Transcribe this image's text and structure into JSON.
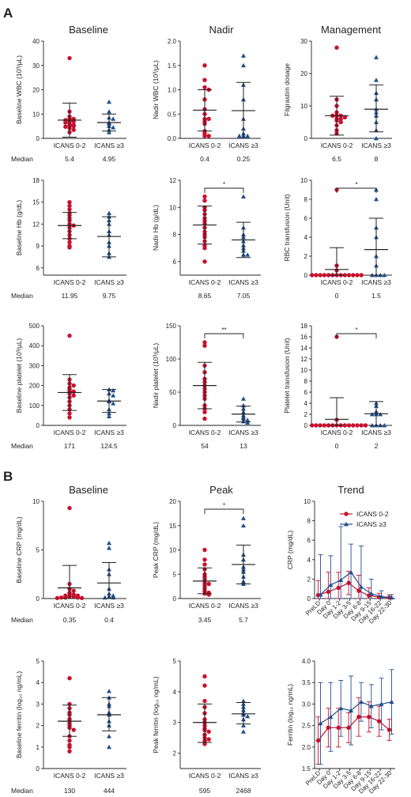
{
  "section_a": {
    "letter": "A",
    "column_titles": [
      "Baseline",
      "Nadir",
      "Management"
    ],
    "median_label": "Median"
  },
  "section_b": {
    "letter": "B",
    "column_titles": [
      "Baseline",
      "Peak",
      "Trend"
    ]
  },
  "colors": {
    "icans_low": "#c8102e",
    "icans_high": "#1f4e8c"
  },
  "chart_data": [
    {
      "id": "a-baseline-wbc",
      "type": "scatter",
      "ylabel": "Baseline WBC (10³/µL)",
      "ylim": [
        0,
        40
      ],
      "yticks": [
        0,
        10,
        20,
        30,
        40
      ],
      "ytick_labels": [
        "0",
        "10",
        "20",
        "30",
        "40"
      ],
      "categories": [
        "ICANS 0-2",
        "ICANS ≥3"
      ],
      "series": [
        {
          "values": [
            33,
            11,
            9,
            8,
            8,
            7.5,
            7,
            7,
            6.5,
            6,
            5.5,
            5.2,
            5,
            4.8,
            4.2,
            3.5,
            2.5
          ],
          "mean": 7.5,
          "sd_low": 0.5,
          "sd_high": 14.5
        },
        {
          "values": [
            15,
            11,
            8.5,
            8,
            6.5,
            6,
            5,
            4.5,
            3.5,
            2.5
          ],
          "mean": 6.5,
          "sd_low": 3,
          "sd_high": 10
        },
        {
          "values": []
        }
      ],
      "medians": [
        "5.4",
        "4.95"
      ]
    },
    {
      "id": "a-nadir-wbc",
      "type": "scatter",
      "ylabel": "Nadir WBC (10³/µL)",
      "ylim": [
        0,
        2
      ],
      "yticks": [
        0,
        0.5,
        1,
        1.5,
        2
      ],
      "ytick_labels": [
        "0.0",
        "0.5",
        "1.0",
        "1.5",
        "2.0"
      ],
      "categories": [
        "ICANS 0-2",
        "ICANS ≥3"
      ],
      "series": [
        {
          "values": [
            1.5,
            1.2,
            1.05,
            1.0,
            0.8,
            0.6,
            0.5,
            0.4,
            0.4,
            0.35,
            0.3,
            0.15,
            0.1,
            0.05,
            0.05
          ],
          "mean": 0.58,
          "sd_low": 0.15,
          "sd_high": 1.0
        },
        {
          "values": [
            1.7,
            1.5,
            1.1,
            0.8,
            0.4,
            0.2,
            0.1,
            0.05,
            0.05,
            0.05
          ],
          "mean": 0.57,
          "sd_low": 0.0,
          "sd_high": 1.15
        },
        {
          "values": []
        }
      ],
      "medians": [
        "0.4",
        "0.25"
      ]
    },
    {
      "id": "a-filgrastim",
      "type": "scatter",
      "ylabel": "Filgrastim dosage",
      "ylim": [
        0,
        30
      ],
      "yticks": [
        0,
        10,
        20,
        30
      ],
      "ytick_labels": [
        "0",
        "10",
        "20",
        "30"
      ],
      "categories": [
        "ICANS 0-2",
        "ICANS ≥3"
      ],
      "series": [
        {
          "values": [
            28,
            12,
            10,
            8,
            7,
            7,
            7,
            6.5,
            6,
            6,
            5.5,
            5,
            4,
            2.5,
            1.5
          ],
          "mean": 7,
          "sd_low": 1,
          "sd_high": 13
        },
        {
          "values": [
            25,
            18,
            14,
            12,
            9,
            8,
            7,
            5,
            2.5,
            0
          ],
          "mean": 9,
          "sd_low": 2,
          "sd_high": 16.5
        },
        {
          "values": []
        }
      ],
      "medians": [
        "6.5",
        "8"
      ]
    },
    {
      "id": "a-baseline-hb",
      "type": "scatter",
      "ylabel": "Baseline Hb (g/dL)",
      "ylim": [
        5,
        18
      ],
      "yticks": [
        6,
        9,
        12,
        15,
        18
      ],
      "ytick_labels": [
        "6",
        "9",
        "12",
        "15",
        "18"
      ],
      "categories": [
        "ICANS 0-2",
        "ICANS ≥3"
      ],
      "series": [
        {
          "values": [
            15.0,
            14.5,
            14.0,
            13.5,
            13.2,
            12.8,
            12.5,
            12.0,
            11.8,
            11.5,
            11.0,
            10.5,
            10.0,
            9.5,
            9.0,
            8.8
          ],
          "mean": 11.8,
          "sd_low": 10.0,
          "sd_high": 13.6
        },
        {
          "values": [
            13.5,
            13.0,
            12.5,
            12.0,
            11.0,
            10.5,
            9.5,
            9.0,
            8.0,
            7.5
          ],
          "mean": 10.3,
          "sd_low": 7.5,
          "sd_high": 13.0
        },
        {
          "values": []
        }
      ],
      "medians": [
        "11.95",
        "9.75"
      ]
    },
    {
      "id": "a-nadir-hb",
      "type": "scatter",
      "ylabel": "Nadir Hb (g/dL)",
      "ylim": [
        5,
        12
      ],
      "yticks": [
        6,
        8,
        10,
        12
      ],
      "ytick_labels": [
        "6",
        "8",
        "10",
        "12"
      ],
      "categories": [
        "ICANS 0-2",
        "ICANS ≥3"
      ],
      "series": [
        {
          "values": [
            10.8,
            10.5,
            10.0,
            9.8,
            9.5,
            9.2,
            9.0,
            8.8,
            8.5,
            8.2,
            8.0,
            7.8,
            7.5,
            7.2,
            7.0,
            6.0
          ],
          "mean": 8.7,
          "sd_low": 7.3,
          "sd_high": 10.1
        },
        {
          "values": [
            10.8,
            8.5,
            8.0,
            7.8,
            7.5,
            7.2,
            7.0,
            6.8,
            6.5,
            6.5
          ],
          "mean": 7.6,
          "sd_low": 6.3,
          "sd_high": 8.9
        },
        {
          "values": []
        }
      ],
      "medians": [
        "8.65",
        "7.05"
      ],
      "significance": "*"
    },
    {
      "id": "a-rbc-transfusion",
      "type": "scatter",
      "ylabel": "RBC transfusion (Unit)",
      "ylim": [
        0,
        10
      ],
      "yticks": [
        0,
        2,
        4,
        6,
        8,
        10
      ],
      "ytick_labels": [
        "0",
        "2",
        "4",
        "6",
        "8",
        "10"
      ],
      "categories": [
        "ICANS 0-2",
        "ICANS ≥3"
      ],
      "series": [
        {
          "values": [
            9,
            1,
            0.5,
            0,
            0,
            0,
            0,
            0,
            0,
            0,
            0,
            0,
            0,
            0,
            0,
            0
          ],
          "mean": 0.6,
          "sd_low": 0,
          "sd_high": 2.9
        },
        {
          "values": [
            9,
            8,
            5,
            4,
            2,
            1,
            0,
            0,
            0,
            0
          ],
          "mean": 2.7,
          "sd_low": 0,
          "sd_high": 6.0
        },
        {
          "values": []
        }
      ],
      "medians": [
        "0",
        "1.5"
      ],
      "significance": "*"
    },
    {
      "id": "a-baseline-platelet",
      "type": "scatter",
      "ylabel": "Baseline platelet (10³/µL)",
      "ylim": [
        0,
        500
      ],
      "yticks": [
        0,
        100,
        200,
        300,
        400,
        500
      ],
      "ytick_labels": [
        "0",
        "100",
        "200",
        "300",
        "400",
        "500"
      ],
      "categories": [
        "ICANS 0-2",
        "ICANS ≥3"
      ],
      "series": [
        {
          "values": [
            450,
            230,
            210,
            200,
            190,
            180,
            170,
            170,
            160,
            150,
            140,
            120,
            100,
            80,
            60,
            40
          ],
          "mean": 165,
          "sd_low": 75,
          "sd_high": 255
        },
        {
          "values": [
            180,
            175,
            160,
            150,
            125,
            120,
            110,
            80,
            60,
            45
          ],
          "mean": 122,
          "sd_low": 65,
          "sd_high": 180
        },
        {
          "values": []
        }
      ],
      "medians": [
        "171",
        "124.5"
      ]
    },
    {
      "id": "a-nadir-platelet",
      "type": "scatter",
      "ylabel": "Nadir platelet (10³/µL)",
      "ylim": [
        0,
        150
      ],
      "yticks": [
        0,
        50,
        100,
        150
      ],
      "ytick_labels": [
        "0",
        "50",
        "100",
        "150"
      ],
      "categories": [
        "ICANS 0-2",
        "ICANS ≥3"
      ],
      "series": [
        {
          "values": [
            125,
            120,
            90,
            80,
            70,
            65,
            60,
            55,
            50,
            45,
            40,
            30,
            25,
            20,
            10
          ],
          "mean": 60,
          "sd_low": 25,
          "sd_high": 95
        },
        {
          "values": [
            40,
            30,
            25,
            20,
            15,
            12,
            10,
            8,
            6,
            4
          ],
          "mean": 17,
          "sd_low": 5,
          "sd_high": 29
        },
        {
          "values": []
        }
      ],
      "medians": [
        "54",
        "13"
      ],
      "significance": "**"
    },
    {
      "id": "a-platelet-transfusion",
      "type": "scatter",
      "ylabel": "Platelet transfusion (Unit)",
      "ylim": [
        0,
        18
      ],
      "yticks": [
        0,
        2,
        4,
        6,
        8,
        10,
        12,
        14,
        16,
        18
      ],
      "ytick_labels": [
        "0",
        "2",
        "4",
        "6",
        "8",
        "10",
        "12",
        "14",
        "16",
        "18"
      ],
      "categories": [
        "ICANS 0-2",
        "ICANS ≥3"
      ],
      "series": [
        {
          "values": [
            16,
            1,
            0,
            0,
            0,
            0,
            0,
            0,
            0,
            0,
            0,
            0,
            0,
            0,
            0,
            0
          ],
          "mean": 1.1,
          "sd_low": 0,
          "sd_high": 5.0
        },
        {
          "values": [
            4,
            3.5,
            2.5,
            2,
            2,
            2,
            0,
            0,
            0,
            0
          ],
          "mean": 2.1,
          "sd_low": 0,
          "sd_high": 4.3
        },
        {
          "values": []
        }
      ],
      "medians": [
        "0",
        "2"
      ],
      "significance": "*"
    },
    {
      "id": "b-baseline-crp",
      "type": "scatter",
      "ylabel": "Baseline CRP (mg/dL)",
      "ylim": [
        0,
        10
      ],
      "yticks": [
        0,
        5,
        10
      ],
      "ytick_labels": [
        "0",
        "5",
        "10"
      ],
      "categories": [
        "ICANS 0-2",
        "ICANS ≥3"
      ],
      "series": [
        {
          "values": [
            9.3,
            1.5,
            1.0,
            0.8,
            0.6,
            0.5,
            0.4,
            0.3,
            0.3,
            0.2,
            0.2,
            0.1,
            0.1,
            0.1,
            0.05,
            0.05
          ],
          "mean": 1.1,
          "sd_low": 0,
          "sd_high": 3.4
        },
        {
          "values": [
            5.7,
            5.2,
            3.0,
            2.5,
            1.0,
            0.5,
            0.3,
            0.2,
            0.1,
            0.1
          ],
          "mean": 1.6,
          "sd_low": 0,
          "sd_high": 3.7
        },
        {
          "values": []
        }
      ],
      "medians": [
        "0.35",
        "0.4"
      ]
    },
    {
      "id": "b-peak-crp",
      "type": "scatter",
      "ylabel": "Peak CRP (mg/dL)",
      "ylim": [
        0,
        20
      ],
      "yticks": [
        0,
        5,
        10,
        15,
        20
      ],
      "ytick_labels": [
        "0",
        "5",
        "10",
        "15",
        "20"
      ],
      "categories": [
        "ICANS 0-2",
        "ICANS ≥3"
      ],
      "series": [
        {
          "values": [
            10,
            8,
            7,
            6,
            5,
            4.5,
            4,
            3.5,
            3,
            3,
            2.5,
            2,
            1.5,
            1.2,
            1.0,
            0.8
          ],
          "mean": 3.6,
          "sd_low": 1.0,
          "sd_high": 6.3
        },
        {
          "values": [
            16.5,
            15,
            9,
            8,
            6.5,
            6,
            5.5,
            4.5,
            3.5,
            3
          ],
          "mean": 7.0,
          "sd_low": 3.0,
          "sd_high": 11.0
        },
        {
          "values": []
        }
      ],
      "medians": [
        "3.45",
        "5.7"
      ],
      "significance": "*"
    },
    {
      "id": "b-crp-trend",
      "type": "line",
      "ylabel": "CRP (mg/dL)",
      "ylim": [
        0,
        10
      ],
      "yticks": [
        0,
        2,
        4,
        6,
        8,
        10
      ],
      "ytick_labels": [
        "0",
        "2",
        "4",
        "6",
        "8",
        "10"
      ],
      "categories": [
        "PreLD",
        "Day 0",
        "Day 1-2",
        "Day 3-5",
        "Day 6-8",
        "Day 9-15",
        "Day 16-22",
        "Day 22-30"
      ],
      "series": [
        {
          "name": "ICANS 0-2",
          "values": [
            0.35,
            0.7,
            1.1,
            1.6,
            0.8,
            0.3,
            0.15,
            0.1
          ],
          "err": [
            1.5,
            2.0,
            1.6,
            1.2,
            1.6,
            0.8,
            0.4,
            0.3
          ]
        },
        {
          "name": "ICANS ≥3",
          "values": [
            0.4,
            1.4,
            1.9,
            2.7,
            1.2,
            0.5,
            0.2,
            0.1
          ],
          "err": [
            4.1,
            3.0,
            5.5,
            2.9,
            4.2,
            1.5,
            0.6,
            0.3
          ]
        }
      ],
      "legend": "top-right"
    },
    {
      "id": "b-baseline-ferritin",
      "type": "scatter",
      "ylabel": "Baseline ferritin (log₁₀ ng/mL)",
      "ylim": [
        0,
        5
      ],
      "yticks": [
        0,
        1,
        2,
        3,
        4,
        5
      ],
      "ytick_labels": [
        "0",
        "1",
        "2",
        "3",
        "4",
        "5"
      ],
      "categories": [
        "ICANS 0-2",
        "ICANS ≥3"
      ],
      "series": [
        {
          "values": [
            4.2,
            3.0,
            2.8,
            2.6,
            2.5,
            2.3,
            2.2,
            2.1,
            2.0,
            1.9,
            1.8,
            1.5,
            1.3,
            1.1,
            1.0,
            0.8
          ],
          "mean": 2.2,
          "sd_low": 1.5,
          "sd_high": 2.95
        },
        {
          "values": [
            3.6,
            3.3,
            3.0,
            2.9,
            2.6,
            2.5,
            2.2,
            2.0,
            1.5,
            1.0
          ],
          "mean": 2.5,
          "sd_low": 1.75,
          "sd_high": 3.3
        },
        {
          "values": []
        }
      ],
      "medians": [
        "130",
        "444"
      ]
    },
    {
      "id": "b-peak-ferritin",
      "type": "scatter",
      "ylabel": "Peak ferritin (log₁₀ ng/mL)",
      "ylim": [
        1.5,
        5
      ],
      "yticks": [
        2,
        3,
        4,
        5
      ],
      "ytick_labels": [
        "2",
        "3",
        "4",
        "5"
      ],
      "categories": [
        "ICANS 0-2",
        "ICANS ≥3"
      ],
      "series": [
        {
          "values": [
            4.5,
            4.2,
            3.7,
            3.5,
            3.3,
            3.1,
            3.0,
            2.9,
            2.8,
            2.75,
            2.7,
            2.6,
            2.5,
            2.45,
            2.4,
            2.3
          ],
          "mean": 3.0,
          "sd_low": 2.35,
          "sd_high": 3.6
        },
        {
          "values": [
            3.7,
            3.6,
            3.5,
            3.4,
            3.3,
            3.25,
            3.2,
            3.1,
            2.9,
            2.7
          ],
          "mean": 3.28,
          "sd_low": 2.95,
          "sd_high": 3.65
        },
        {
          "values": []
        }
      ],
      "medians": [
        "595",
        "2468"
      ]
    },
    {
      "id": "b-ferritin-trend",
      "type": "line",
      "ylabel": "Ferritin (log₁₀ ng/mL)",
      "ylim": [
        1.5,
        4.0
      ],
      "yticks": [
        1.5,
        2.0,
        2.5,
        3.0,
        3.5,
        4.0
      ],
      "ytick_labels": [
        "1.5",
        "2.0",
        "2.5",
        "3.0",
        "3.5",
        "4.0"
      ],
      "categories": [
        "PreLD",
        "Day 0",
        "Day 1-2",
        "Day 3-5",
        "Day 6-8",
        "Day 9-15",
        "Day 16-22",
        "Day 22-30"
      ],
      "series": [
        {
          "name": "ICANS 0-2",
          "values": [
            2.15,
            2.45,
            2.45,
            2.45,
            2.7,
            2.7,
            2.6,
            2.4
          ],
          "err": [
            0.55,
            0.45,
            0.45,
            0.35,
            0.45,
            0.35,
            0.35,
            0.25
          ]
        },
        {
          "name": "ICANS ≥3",
          "values": [
            2.55,
            2.7,
            2.9,
            2.85,
            3.05,
            2.95,
            3.0,
            3.05
          ],
          "err": [
            0.95,
            0.8,
            0.65,
            0.8,
            0.45,
            0.5,
            0.6,
            0.75
          ]
        }
      ]
    }
  ]
}
